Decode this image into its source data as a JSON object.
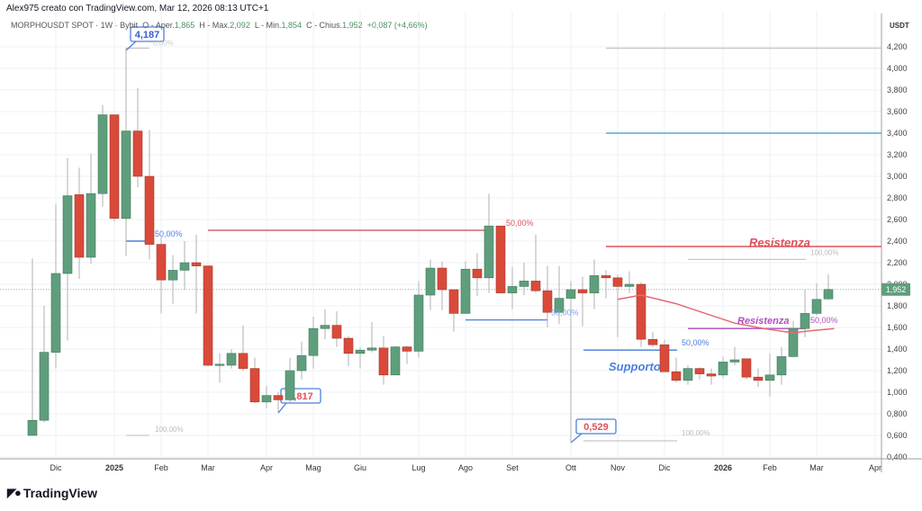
{
  "credit": "Alex975 creato con TradingView.com, Mar 12, 2026 08:13 UTC+1",
  "legend": {
    "symbol": "MORPHOUSDT SPOT · 1W · Bybit",
    "o_label": "O - Aper.",
    "o": "1,865",
    "h_label": "H - Max.",
    "h": "2,092",
    "l_label": "L - Min.",
    "l": "1,854",
    "c_label": "C - Chius.",
    "c": "1,952",
    "chg": "+0,087 (+4,66%)"
  },
  "colors": {
    "up": "#5f9e7c",
    "down": "#d94a3a",
    "grid": "#eef0f3",
    "resist": "#e0505a",
    "support": "#4b7fe0",
    "purple": "#b04fc0",
    "blue_line": "#5aa7cc"
  },
  "chart_data": {
    "type": "candlestick",
    "currency": "USDT",
    "ylim": [
      0.4,
      4.3
    ],
    "yticks": [
      "4,200",
      "4,000",
      "3,800",
      "3,600",
      "3,400",
      "3,200",
      "3,000",
      "2,800",
      "2,600",
      "2,400",
      "2,200",
      "2,000",
      "1,800",
      "1,600",
      "1,400",
      "1,200",
      "1,000",
      "0,800",
      "0,600",
      "0,400"
    ],
    "xticks": [
      {
        "label": "Dic",
        "i": 2
      },
      {
        "label": "2025",
        "i": 7,
        "bold": true
      },
      {
        "label": "Feb",
        "i": 11
      },
      {
        "label": "Mar",
        "i": 15
      },
      {
        "label": "Apr",
        "i": 20
      },
      {
        "label": "Mag",
        "i": 24
      },
      {
        "label": "Giu",
        "i": 28
      },
      {
        "label": "Lug",
        "i": 33
      },
      {
        "label": "Ago",
        "i": 37
      },
      {
        "label": "Set",
        "i": 41
      },
      {
        "label": "Ott",
        "i": 46
      },
      {
        "label": "Nov",
        "i": 50
      },
      {
        "label": "Dic",
        "i": 54
      },
      {
        "label": "2026",
        "i": 59,
        "bold": true
      },
      {
        "label": "Feb",
        "i": 63
      },
      {
        "label": "Mar",
        "i": 67
      },
      {
        "label": "Apr",
        "i": 72
      }
    ],
    "candles": [
      [
        0.6,
        2.24,
        0.6,
        0.74
      ],
      [
        0.74,
        1.8,
        0.72,
        1.37
      ],
      [
        1.37,
        2.74,
        1.22,
        2.1
      ],
      [
        2.1,
        3.17,
        1.48,
        2.82
      ],
      [
        2.83,
        3.08,
        2.05,
        2.25
      ],
      [
        2.25,
        3.21,
        2.19,
        2.84
      ],
      [
        2.84,
        3.66,
        2.72,
        3.57
      ],
      [
        3.57,
        3.57,
        2.58,
        2.61
      ],
      [
        2.61,
        4.187,
        2.26,
        3.42
      ],
      [
        3.42,
        3.82,
        2.9,
        3.0
      ],
      [
        3.0,
        3.43,
        2.23,
        2.37
      ],
      [
        2.37,
        2.44,
        1.73,
        2.04
      ],
      [
        2.04,
        2.27,
        1.82,
        2.13
      ],
      [
        2.13,
        2.4,
        1.95,
        2.2
      ],
      [
        2.2,
        2.46,
        1.73,
        2.17
      ],
      [
        2.17,
        2.17,
        1.24,
        1.25
      ],
      [
        1.25,
        1.36,
        1.09,
        1.26
      ],
      [
        1.25,
        1.4,
        1.22,
        1.36
      ],
      [
        1.36,
        1.62,
        1.2,
        1.22
      ],
      [
        1.22,
        1.32,
        0.9,
        0.91
      ],
      [
        0.91,
        1.06,
        0.85,
        0.97
      ],
      [
        0.97,
        1.0,
        0.817,
        0.93
      ],
      [
        0.93,
        1.32,
        0.9,
        1.2
      ],
      [
        1.2,
        1.47,
        1.12,
        1.34
      ],
      [
        1.34,
        1.7,
        1.22,
        1.59
      ],
      [
        1.59,
        1.77,
        1.49,
        1.62
      ],
      [
        1.62,
        1.75,
        1.42,
        1.5
      ],
      [
        1.5,
        1.52,
        1.24,
        1.36
      ],
      [
        1.36,
        1.42,
        1.22,
        1.39
      ],
      [
        1.39,
        1.65,
        1.37,
        1.41
      ],
      [
        1.41,
        1.52,
        1.07,
        1.16
      ],
      [
        1.16,
        1.43,
        1.16,
        1.42
      ],
      [
        1.42,
        1.43,
        1.26,
        1.38
      ],
      [
        1.38,
        2.03,
        1.32,
        1.9
      ],
      [
        1.9,
        2.23,
        1.76,
        2.15
      ],
      [
        2.15,
        2.21,
        1.76,
        1.95
      ],
      [
        1.95,
        1.95,
        1.56,
        1.73
      ],
      [
        1.73,
        2.21,
        1.73,
        2.14
      ],
      [
        2.14,
        2.29,
        1.89,
        2.06
      ],
      [
        2.06,
        2.84,
        1.92,
        2.54
      ],
      [
        2.54,
        2.54,
        1.92,
        1.92
      ],
      [
        1.92,
        2.16,
        1.77,
        1.98
      ],
      [
        1.98,
        2.2,
        1.9,
        2.03
      ],
      [
        2.03,
        2.46,
        1.92,
        1.94
      ],
      [
        1.94,
        2.17,
        1.6,
        1.74
      ],
      [
        1.74,
        2.17,
        1.63,
        1.87
      ],
      [
        1.87,
        2.03,
        0.529,
        1.95
      ],
      [
        1.95,
        2.07,
        1.61,
        1.92
      ],
      [
        1.92,
        2.23,
        1.77,
        2.08
      ],
      [
        2.08,
        2.13,
        1.87,
        2.06
      ],
      [
        2.06,
        2.09,
        1.51,
        1.98
      ],
      [
        1.98,
        2.12,
        1.92,
        2.0
      ],
      [
        2.0,
        2.02,
        1.42,
        1.49
      ],
      [
        1.49,
        1.56,
        1.42,
        1.44
      ],
      [
        1.44,
        1.49,
        1.19,
        1.19
      ],
      [
        1.19,
        1.32,
        1.09,
        1.11
      ],
      [
        1.11,
        1.25,
        1.07,
        1.22
      ],
      [
        1.22,
        1.23,
        1.12,
        1.17
      ],
      [
        1.17,
        1.22,
        1.07,
        1.15
      ],
      [
        1.16,
        1.33,
        1.13,
        1.28
      ],
      [
        1.28,
        1.42,
        1.25,
        1.3
      ],
      [
        1.31,
        1.31,
        1.12,
        1.14
      ],
      [
        1.14,
        1.22,
        1.05,
        1.11
      ],
      [
        1.11,
        1.36,
        0.96,
        1.16
      ],
      [
        1.16,
        1.42,
        1.07,
        1.33
      ],
      [
        1.33,
        1.66,
        1.33,
        1.59
      ],
      [
        1.59,
        1.95,
        1.51,
        1.73
      ],
      [
        1.73,
        2.01,
        1.71,
        1.86
      ],
      [
        1.865,
        2.092,
        1.854,
        1.952
      ]
    ],
    "ma": [
      [
        50,
        1.86
      ],
      [
        52,
        1.9
      ],
      [
        55,
        1.82
      ],
      [
        57.5,
        1.73
      ],
      [
        60,
        1.64
      ],
      [
        62.5,
        1.59
      ],
      [
        65,
        1.55
      ],
      [
        66.5,
        1.57
      ],
      [
        68.5,
        1.59
      ]
    ],
    "last_price": "1,952",
    "last_value": 1.952,
    "annotations": {
      "high_callout": "4,187",
      "low_callout_1": "0,817",
      "low_callout_2": "0,529",
      "fib_0": "0,00%",
      "fib_50_a": "50,00%",
      "fib_100_a": "100,00%",
      "fib_50_b": "50,00%",
      "fib_50_c": "50,00%",
      "fib_50_d": "50,00%",
      "fib_100_d": "100,00%",
      "fib_50_e": "50,00%",
      "fib_100_e": "100,00%",
      "resistenza_1": "Resistenza",
      "resistenza_2": "Resistenza",
      "supporto": "Supporto"
    },
    "levels": {
      "dark_red": 2.5,
      "resist": 2.35,
      "blue": 3.4,
      "top_gray": 4.187,
      "fib_b_50": 1.67,
      "fib_e_100": 2.23,
      "purple": 1.59,
      "support": 1.39,
      "fib_d_100": 0.55,
      "fib_a_50": 2.4,
      "fib_a_100": 0.6
    }
  },
  "logo": "TradingView"
}
